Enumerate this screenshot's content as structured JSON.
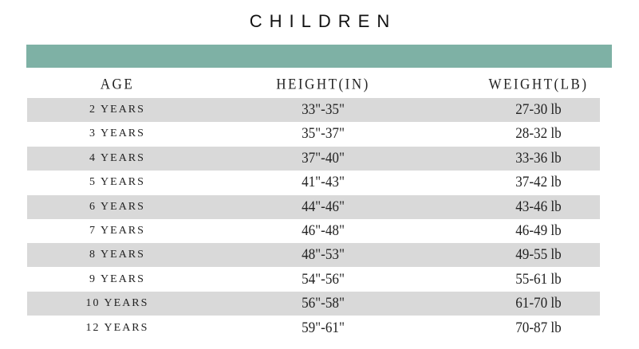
{
  "title": "CHILDREN",
  "header_color": "#7eb1a5",
  "columns": [
    "AGE",
    "HEIGHT(IN)",
    "WEIGHT(LB)"
  ],
  "rows": [
    [
      "2 YEARS",
      "33\"-35\"",
      "27-30 lb"
    ],
    [
      "3 YEARS",
      "35\"-37\"",
      "28-32 lb"
    ],
    [
      "4 YEARS",
      "37\"-40\"",
      "33-36 lb"
    ],
    [
      "5 YEARS",
      "41\"-43\"",
      "37-42 lb"
    ],
    [
      "6 YEARS",
      "44\"-46\"",
      "43-46 lb"
    ],
    [
      "7 YEARS",
      "46\"-48\"",
      "46-49 lb"
    ],
    [
      "8 YEARS",
      "48\"-53\"",
      "49-55 lb"
    ],
    [
      "9 YEARS",
      "54\"-56\"",
      "55-61 lb"
    ],
    [
      "10 YEARS",
      "56\"-58\"",
      "61-70 lb"
    ],
    [
      "12 YEARS",
      "59\"-61\"",
      "70-87 lb"
    ]
  ]
}
